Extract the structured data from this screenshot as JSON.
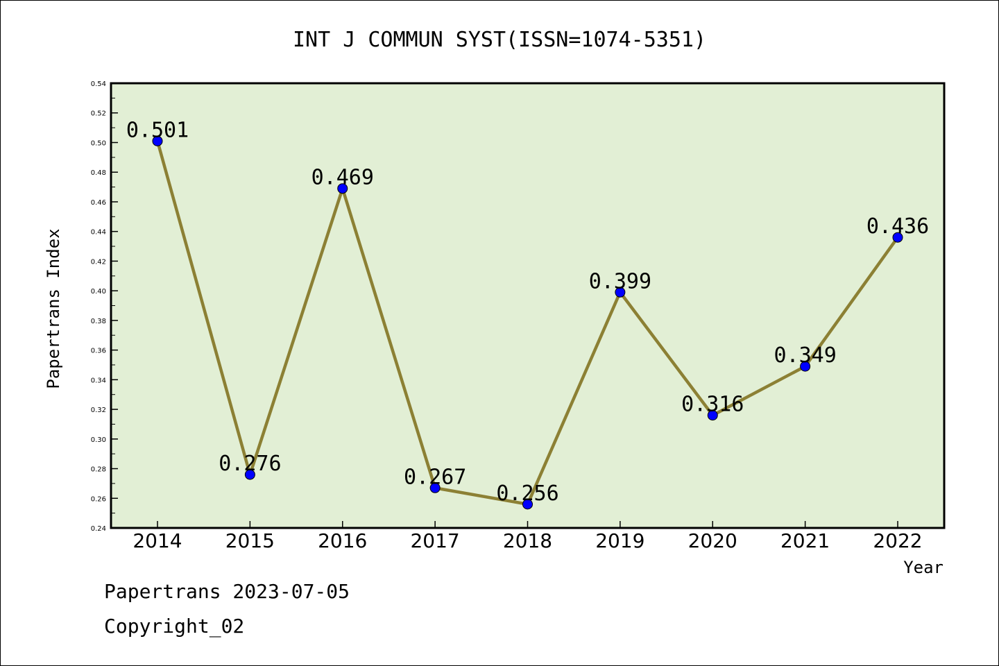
{
  "chart_data": {
    "type": "line",
    "title": "INT J COMMUN SYST(ISSN=1074-5351)",
    "xlabel": "Year",
    "ylabel": "Papertrans Index",
    "categories": [
      "2014",
      "2015",
      "2016",
      "2017",
      "2018",
      "2019",
      "2020",
      "2021",
      "2022"
    ],
    "series": [
      {
        "values": [
          0.501,
          0.276,
          0.469,
          0.267,
          0.256,
          0.399,
          0.316,
          0.349,
          0.436
        ],
        "labels": [
          "0.501",
          "0.276",
          "0.469",
          "0.267",
          "0.256",
          "0.399",
          "0.316",
          "0.349",
          "0.436"
        ]
      }
    ],
    "ylim": [
      0.24,
      0.54
    ],
    "yticks": [
      "0.24",
      "0.26",
      "0.28",
      "0.30",
      "0.32",
      "0.34",
      "0.36",
      "0.38",
      "0.40",
      "0.42",
      "0.44",
      "0.46",
      "0.48",
      "0.50",
      "0.52",
      "0.54"
    ],
    "grid": false,
    "colors": {
      "plot_background": "#e2efd5",
      "line": "#8c8034",
      "marker": "#0000ff"
    }
  },
  "footer": {
    "date_line": "Papertrans 2023-07-05",
    "copyright": "Copyright_02"
  }
}
